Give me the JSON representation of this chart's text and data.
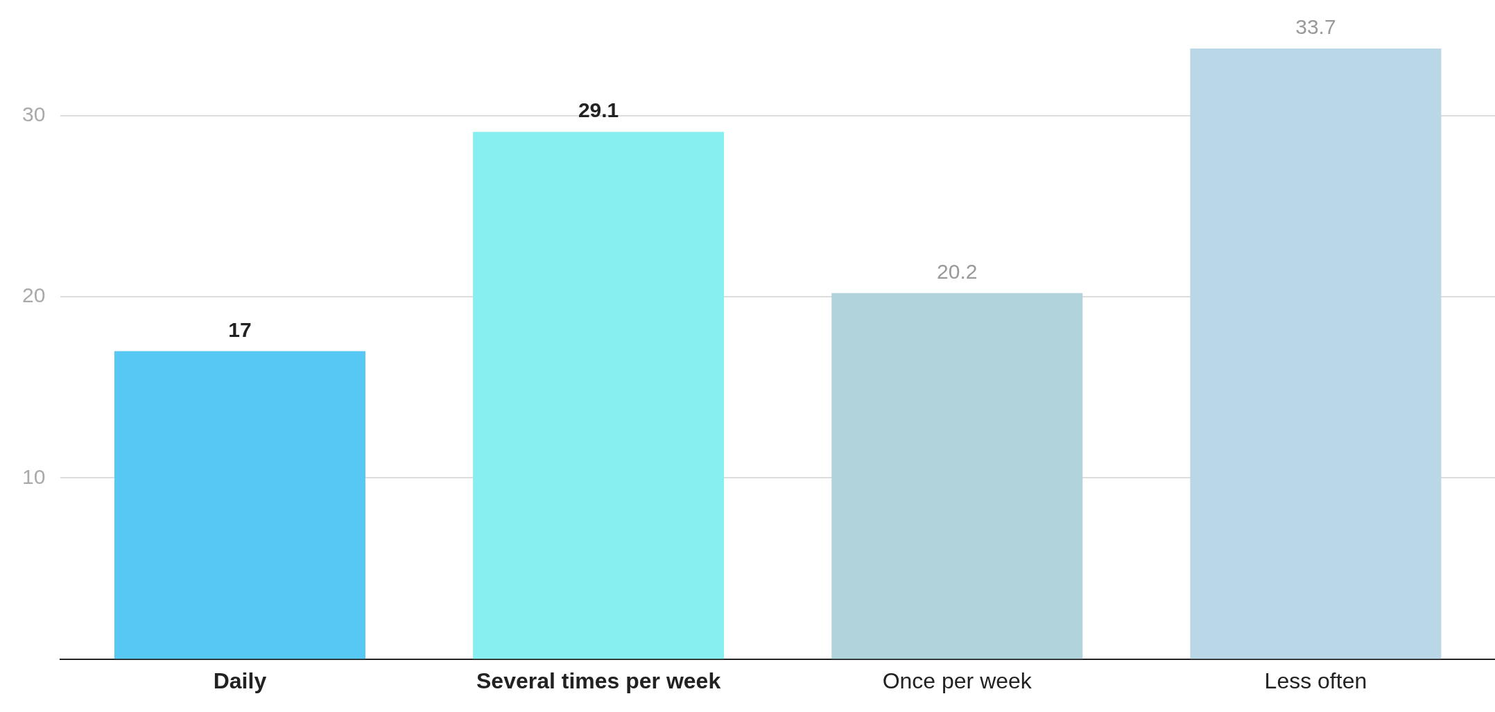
{
  "chart_data": {
    "type": "bar",
    "categories": [
      "Daily",
      "Several times per week",
      "Once per week",
      "Less often"
    ],
    "values": [
      17,
      29.1,
      20.2,
      33.7
    ],
    "colors": [
      "#57c7f4",
      "#88eff0",
      "#b0d3dc",
      "#bad7e8"
    ],
    "ylim": [
      0,
      33.7
    ],
    "yticks": [
      10,
      20,
      30
    ],
    "grid": "y",
    "data_labels": true,
    "legend": false
  }
}
